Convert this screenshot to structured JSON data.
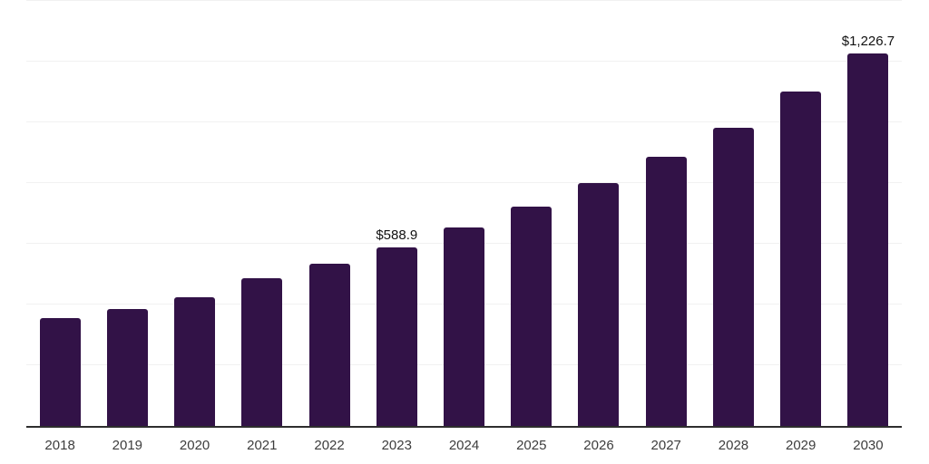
{
  "chart_data": {
    "type": "bar",
    "title": "",
    "xlabel": "",
    "ylabel": "",
    "categories": [
      "2018",
      "2019",
      "2020",
      "2021",
      "2022",
      "2023",
      "2024",
      "2025",
      "2026",
      "2027",
      "2028",
      "2029",
      "2030"
    ],
    "values": [
      355,
      385,
      424,
      487,
      533,
      588.9,
      654,
      722,
      799,
      887,
      983,
      1101,
      1226.7
    ],
    "labeled_points": [
      {
        "category": "2023",
        "label": "$588.9"
      },
      {
        "category": "2030",
        "label": "$1,226.7"
      }
    ],
    "ylim": [
      0,
      1400
    ],
    "gridline_step": 200,
    "grid": "horizontal-only",
    "y_axis_tick_labels": "none",
    "legend": "none"
  },
  "colors": {
    "bar": "#321247",
    "gridline": "#f1f1f1",
    "axis": "#2e2e2e",
    "year_label": "#3d3d3d",
    "value_label": "#111111",
    "background": "#ffffff"
  }
}
